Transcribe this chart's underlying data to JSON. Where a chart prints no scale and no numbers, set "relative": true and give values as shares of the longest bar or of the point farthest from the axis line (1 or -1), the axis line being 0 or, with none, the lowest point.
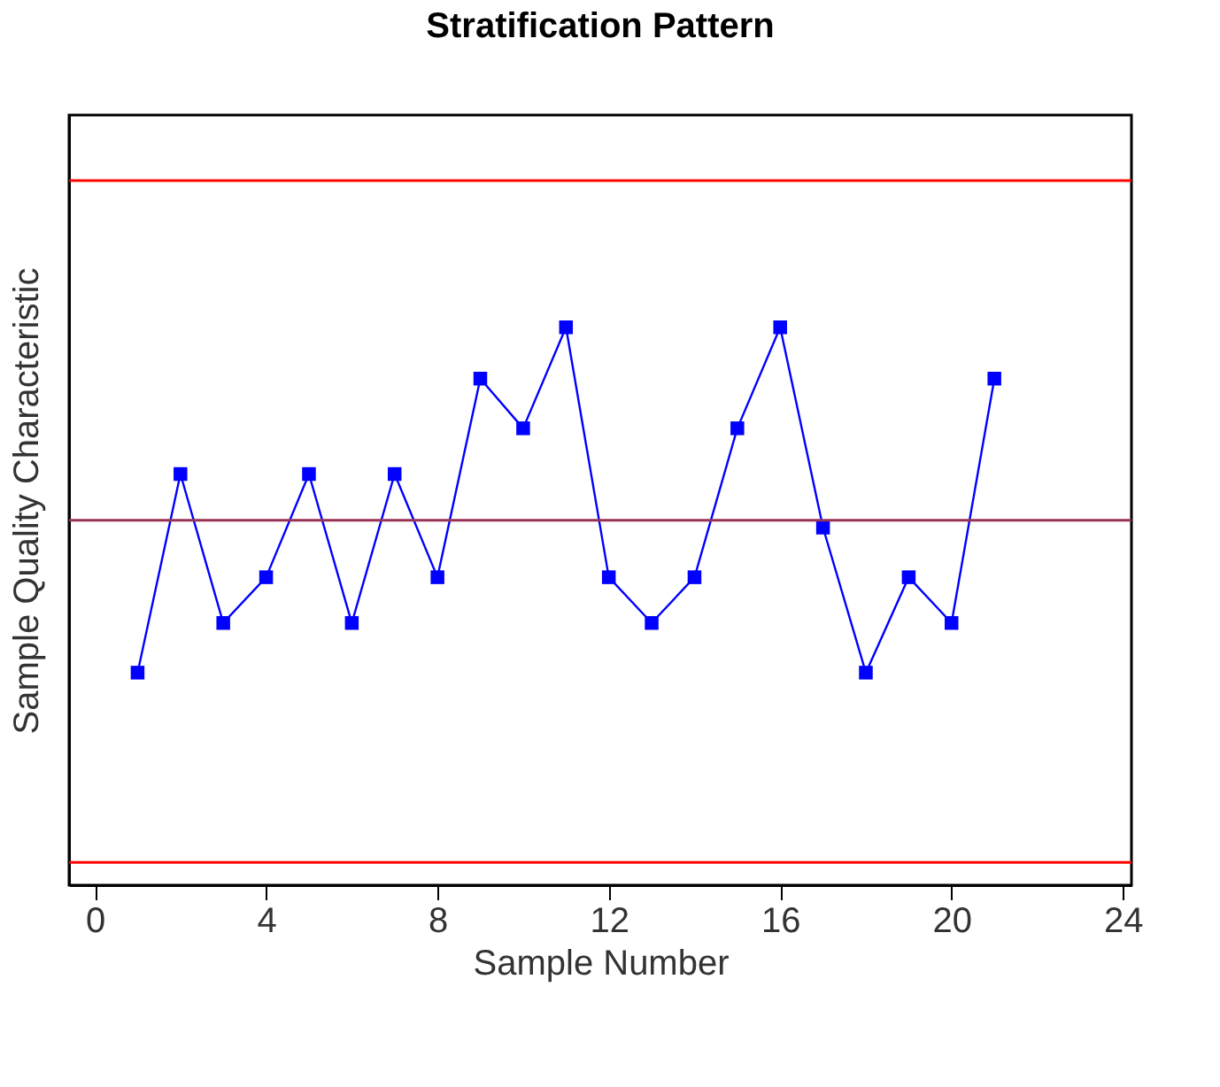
{
  "chart_data": {
    "type": "line",
    "title": "Stratification Pattern",
    "xlabel": "Sample Number",
    "ylabel": "Sample Quality Characteristic",
    "x": [
      1,
      2,
      3,
      4,
      5,
      6,
      7,
      8,
      9,
      10,
      11,
      12,
      13,
      14,
      15,
      16,
      17,
      18,
      19,
      20,
      21
    ],
    "relative": true,
    "series": [
      {
        "color": "#0000ff",
        "values": [
          0.381,
          0.737,
          0.47,
          0.552,
          0.737,
          0.47,
          0.737,
          0.552,
          0.908,
          0.819,
          1,
          0.552,
          0.47,
          0.552,
          0.819,
          1,
          0.641,
          0.381,
          0.552,
          0.47,
          0.908
        ]
      }
    ],
    "ref_lines": [
      {
        "axis": "y",
        "value": 1.263,
        "color": "#ff0000"
      },
      {
        "axis": "y",
        "value": 0.654,
        "color": "#993355"
      },
      {
        "axis": "y",
        "value": 0.041,
        "color": "#ff0000"
      }
    ],
    "xlim": [
      -0.6,
      24.2
    ],
    "xticks": [
      0,
      4,
      8,
      12,
      16,
      20,
      24
    ],
    "marker": "square",
    "line_style": "solid",
    "grid": false,
    "tick_labels": "x"
  }
}
